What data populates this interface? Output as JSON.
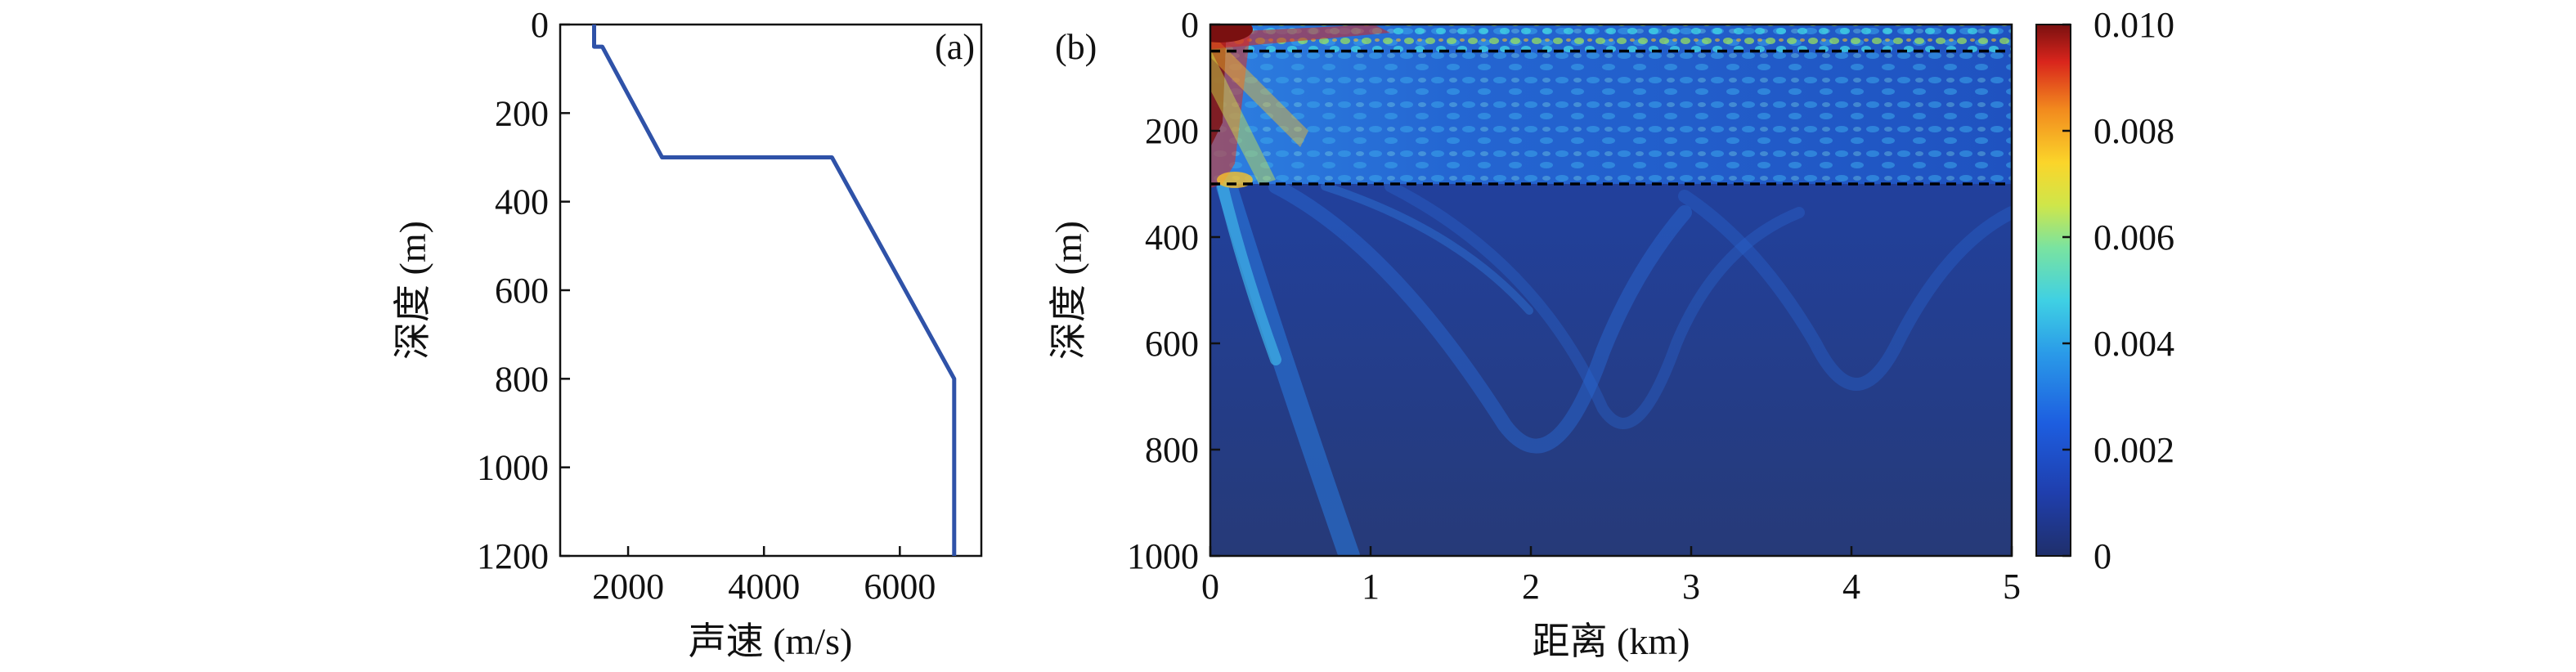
{
  "chart_data": [
    {
      "type": "line",
      "panel_label": "(a)",
      "xlabel": "声速 (m/s)",
      "ylabel": "深度 (m)",
      "xlim": [
        1000,
        7200
      ],
      "ylim": [
        1200,
        0
      ],
      "y_inverted": true,
      "xticks": [
        2000,
        4000,
        6000
      ],
      "xtick_labels": [
        "2000",
        "4000",
        "6000"
      ],
      "yticks": [
        0,
        200,
        400,
        600,
        800,
        1000,
        1200
      ],
      "ytick_labels": [
        "0",
        "200",
        "400",
        "600",
        "800",
        "1000",
        "1200"
      ],
      "grid": false,
      "series": [
        {
          "color": "#2f52a8",
          "points": [
            {
              "x": 1500,
              "y": 0
            },
            {
              "x": 1500,
              "y": 50
            },
            {
              "x": 1620,
              "y": 50
            },
            {
              "x": 2500,
              "y": 300
            },
            {
              "x": 5000,
              "y": 300
            },
            {
              "x": 6800,
              "y": 800
            },
            {
              "x": 6800,
              "y": 1200
            }
          ]
        }
      ]
    },
    {
      "type": "heatmap",
      "panel_label": "(b)",
      "xlabel": "距离 (km)",
      "ylabel": "深度 (m)",
      "xlim": [
        0,
        5
      ],
      "ylim": [
        1000,
        0
      ],
      "y_inverted": true,
      "xticks": [
        0,
        1,
        2,
        3,
        4,
        5
      ],
      "xtick_labels": [
        "0",
        "1",
        "2",
        "3",
        "4",
        "5"
      ],
      "yticks": [
        0,
        200,
        400,
        600,
        800,
        1000
      ],
      "ytick_labels": [
        "0",
        "200",
        "400",
        "600",
        "800",
        "1000"
      ],
      "colormap": "jet",
      "colorbar": {
        "range": [
          0,
          0.01
        ],
        "ticks": [
          0,
          0.002,
          0.004,
          0.006,
          0.008,
          0.01
        ],
        "tick_labels": [
          "0",
          "0.002",
          "0.004",
          "0.006",
          "0.008",
          "0.010"
        ]
      },
      "reference_lines": [
        {
          "depth": 50,
          "style": "dashed",
          "color": "#000000"
        },
        {
          "depth": 300,
          "style": "dashed",
          "color": "#000000"
        }
      ],
      "field_description": "Acoustic field intensity; high values (up to 0.010) near source at top-left, interference pattern in 0-300 m layer, weak (~0.001-0.002) field below 300 m with curved ray beams"
    }
  ]
}
